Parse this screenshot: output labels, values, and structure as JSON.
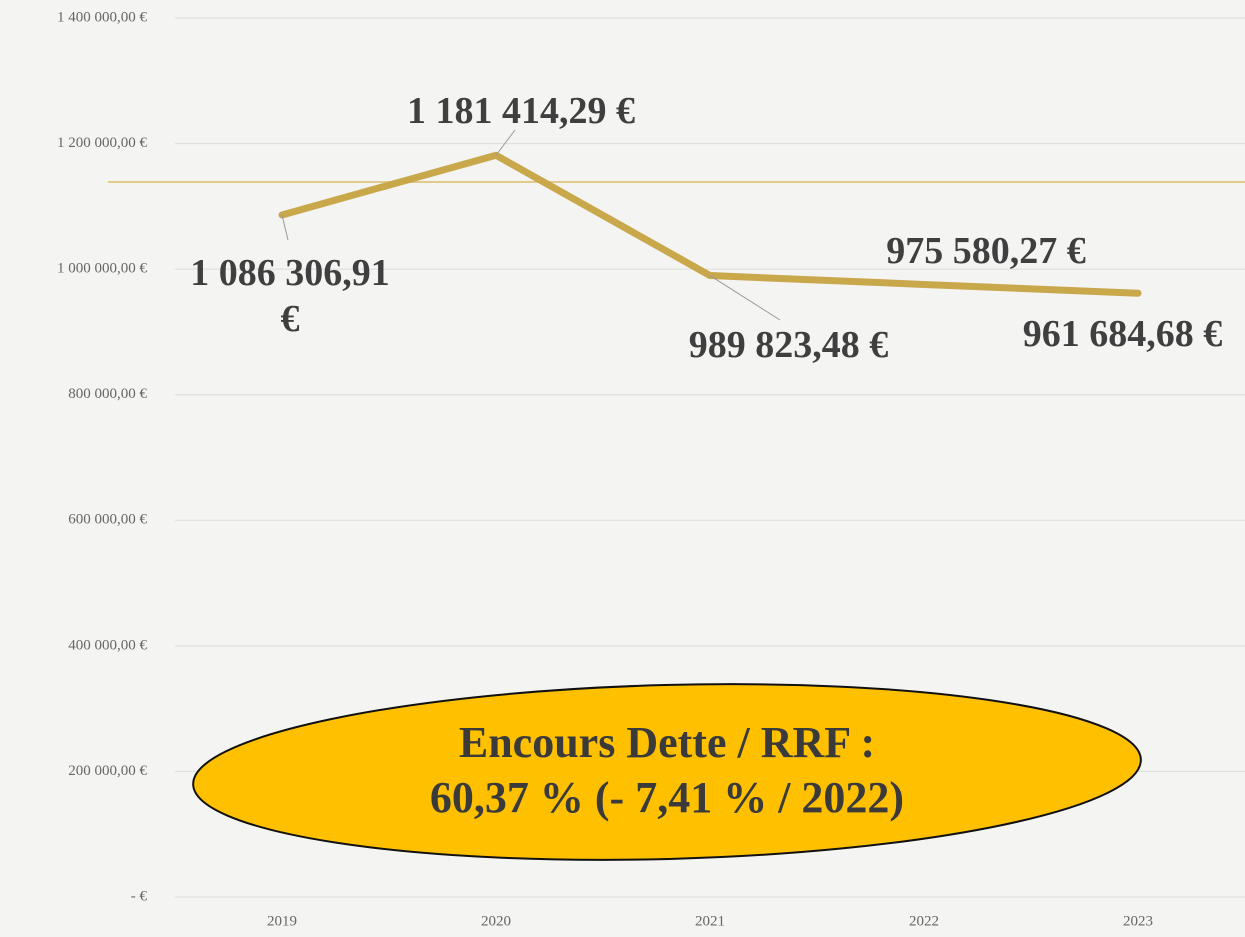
{
  "chart_data": {
    "type": "line",
    "categories": [
      "2019",
      "2020",
      "2021",
      "2022",
      "2023"
    ],
    "series": [
      {
        "name": "Encours Dette",
        "color": "#c9a84c",
        "values": [
          1086306.91,
          1181414.29,
          989823.48,
          975580.27,
          961684.68
        ],
        "value_labels": [
          "1 086 306,91 €",
          "1 181 414,29 €",
          "989 823,48 €",
          "975 580,27 €",
          "961 684,68 €"
        ]
      }
    ],
    "ylim": [
      0,
      1400000
    ],
    "yticks": [
      {
        "value": 0,
        "label": "-  €"
      },
      {
        "value": 200000,
        "label": "200 000,00 €"
      },
      {
        "value": 400000,
        "label": "400 000,00 €"
      },
      {
        "value": 600000,
        "label": "600 000,00 €"
      },
      {
        "value": 800000,
        "label": "800 000,00 €"
      },
      {
        "value": 1000000,
        "label": "1 000 000,00 €"
      },
      {
        "value": 1200000,
        "label": "1 200 000,00 €"
      },
      {
        "value": 1400000,
        "label": "1 400 000,00 €"
      }
    ],
    "grid": true,
    "annotations": [
      "Encours Dette / RRF :",
      "60,37 % (- 7,41 % / 2022)"
    ]
  }
}
